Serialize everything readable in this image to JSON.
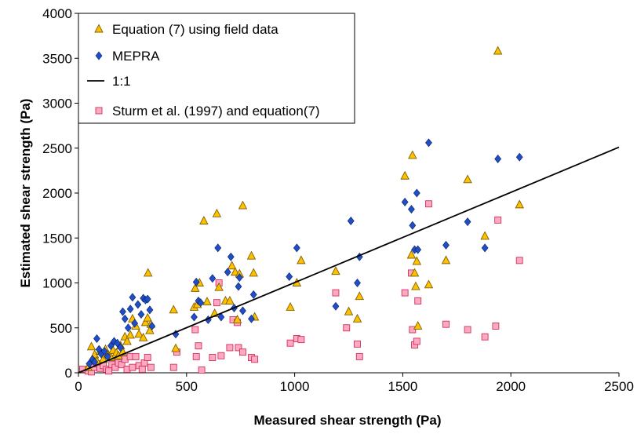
{
  "chart_data": {
    "type": "scatter",
    "title": "",
    "xlabel": "Measured shear strength (Pa)",
    "ylabel": "Estimated shear strength (Pa)",
    "xlim": [
      0,
      2500
    ],
    "ylim": [
      0,
      4000
    ],
    "xticks": [
      0,
      500,
      1000,
      1500,
      2000,
      2500
    ],
    "yticks": [
      0,
      500,
      1000,
      1500,
      2000,
      2500,
      3000,
      3500,
      4000
    ],
    "grid": false,
    "legend_position": "top-left",
    "series": [
      {
        "name": "Equation (7) using field data",
        "marker": "triangle",
        "color": "#FFC000",
        "stroke": "#7F6000",
        "points": [
          [
            45,
            60
          ],
          [
            60,
            290
          ],
          [
            75,
            200
          ],
          [
            85,
            130
          ],
          [
            100,
            240
          ],
          [
            115,
            150
          ],
          [
            125,
            260
          ],
          [
            135,
            200
          ],
          [
            150,
            170
          ],
          [
            160,
            250
          ],
          [
            175,
            220
          ],
          [
            185,
            190
          ],
          [
            195,
            300
          ],
          [
            205,
            230
          ],
          [
            215,
            400
          ],
          [
            225,
            350
          ],
          [
            240,
            420
          ],
          [
            250,
            600
          ],
          [
            265,
            520
          ],
          [
            280,
            430
          ],
          [
            300,
            390
          ],
          [
            310,
            560
          ],
          [
            320,
            610
          ],
          [
            322,
            1110
          ],
          [
            330,
            470
          ],
          [
            335,
            540
          ],
          [
            440,
            700
          ],
          [
            450,
            270
          ],
          [
            535,
            730
          ],
          [
            540,
            940
          ],
          [
            550,
            760
          ],
          [
            560,
            1000
          ],
          [
            580,
            1690
          ],
          [
            595,
            790
          ],
          [
            630,
            660
          ],
          [
            640,
            1770
          ],
          [
            650,
            950
          ],
          [
            680,
            800
          ],
          [
            700,
            800
          ],
          [
            710,
            1190
          ],
          [
            725,
            1120
          ],
          [
            735,
            590
          ],
          [
            745,
            1100
          ],
          [
            760,
            1860
          ],
          [
            800,
            1300
          ],
          [
            810,
            1110
          ],
          [
            815,
            620
          ],
          [
            980,
            730
          ],
          [
            1010,
            1000
          ],
          [
            1030,
            1250
          ],
          [
            1190,
            1130
          ],
          [
            1250,
            680
          ],
          [
            1290,
            600
          ],
          [
            1300,
            850
          ],
          [
            1510,
            2190
          ],
          [
            1540,
            1310
          ],
          [
            1545,
            2420
          ],
          [
            1555,
            1110
          ],
          [
            1560,
            960
          ],
          [
            1565,
            1240
          ],
          [
            1570,
            520
          ],
          [
            1620,
            980
          ],
          [
            1700,
            1250
          ],
          [
            1800,
            2150
          ],
          [
            1880,
            1520
          ],
          [
            1940,
            3580
          ],
          [
            2040,
            1870
          ]
        ]
      },
      {
        "name": "MEPRA",
        "marker": "diamond",
        "color": "#1F4FC8",
        "stroke": "#0A1F66",
        "points": [
          [
            50,
            100
          ],
          [
            65,
            150
          ],
          [
            75,
            120
          ],
          [
            85,
            380
          ],
          [
            95,
            260
          ],
          [
            105,
            210
          ],
          [
            120,
            240
          ],
          [
            135,
            180
          ],
          [
            150,
            300
          ],
          [
            165,
            350
          ],
          [
            180,
            330
          ],
          [
            195,
            280
          ],
          [
            205,
            680
          ],
          [
            215,
            600
          ],
          [
            230,
            500
          ],
          [
            240,
            710
          ],
          [
            250,
            840
          ],
          [
            260,
            550
          ],
          [
            275,
            760
          ],
          [
            290,
            650
          ],
          [
            300,
            830
          ],
          [
            310,
            810
          ],
          [
            320,
            820
          ],
          [
            330,
            700
          ],
          [
            340,
            520
          ],
          [
            450,
            430
          ],
          [
            535,
            620
          ],
          [
            545,
            1010
          ],
          [
            555,
            800
          ],
          [
            565,
            780
          ],
          [
            600,
            590
          ],
          [
            620,
            1050
          ],
          [
            645,
            1390
          ],
          [
            660,
            620
          ],
          [
            690,
            1120
          ],
          [
            705,
            1290
          ],
          [
            720,
            720
          ],
          [
            740,
            960
          ],
          [
            745,
            1060
          ],
          [
            760,
            690
          ],
          [
            800,
            600
          ],
          [
            810,
            870
          ],
          [
            975,
            1070
          ],
          [
            1010,
            1390
          ],
          [
            1190,
            740
          ],
          [
            1260,
            1690
          ],
          [
            1290,
            1000
          ],
          [
            1300,
            1290
          ],
          [
            1510,
            1900
          ],
          [
            1540,
            1820
          ],
          [
            1545,
            1640
          ],
          [
            1555,
            1370
          ],
          [
            1565,
            2000
          ],
          [
            1570,
            1370
          ],
          [
            1620,
            2560
          ],
          [
            1700,
            1420
          ],
          [
            1800,
            1680
          ],
          [
            1880,
            1390
          ],
          [
            1940,
            2380
          ],
          [
            2040,
            2400
          ]
        ]
      },
      {
        "name": "1:1",
        "marker": "line",
        "color": "#000000",
        "points": [
          [
            0,
            0
          ],
          [
            2500,
            2510
          ]
        ]
      },
      {
        "name": "Sturm et al. (1997) and equation(7)",
        "marker": "square",
        "color": "#FFAAC0",
        "stroke": "#D03060",
        "points": [
          [
            20,
            40
          ],
          [
            45,
            20
          ],
          [
            60,
            10
          ],
          [
            70,
            60
          ],
          [
            85,
            100
          ],
          [
            100,
            50
          ],
          [
            115,
            80
          ],
          [
            130,
            40
          ],
          [
            140,
            20
          ],
          [
            155,
            90
          ],
          [
            170,
            60
          ],
          [
            185,
            110
          ],
          [
            200,
            90
          ],
          [
            215,
            150
          ],
          [
            225,
            40
          ],
          [
            240,
            180
          ],
          [
            250,
            60
          ],
          [
            265,
            180
          ],
          [
            280,
            80
          ],
          [
            295,
            40
          ],
          [
            305,
            110
          ],
          [
            320,
            170
          ],
          [
            335,
            60
          ],
          [
            440,
            60
          ],
          [
            455,
            230
          ],
          [
            540,
            480
          ],
          [
            545,
            180
          ],
          [
            555,
            300
          ],
          [
            570,
            30
          ],
          [
            620,
            170
          ],
          [
            640,
            780
          ],
          [
            650,
            1000
          ],
          [
            660,
            190
          ],
          [
            700,
            280
          ],
          [
            715,
            590
          ],
          [
            735,
            560
          ],
          [
            740,
            280
          ],
          [
            760,
            230
          ],
          [
            800,
            170
          ],
          [
            815,
            150
          ],
          [
            980,
            330
          ],
          [
            1010,
            380
          ],
          [
            1030,
            370
          ],
          [
            1190,
            890
          ],
          [
            1240,
            500
          ],
          [
            1290,
            320
          ],
          [
            1300,
            180
          ],
          [
            1510,
            890
          ],
          [
            1540,
            1110
          ],
          [
            1545,
            480
          ],
          [
            1555,
            310
          ],
          [
            1565,
            350
          ],
          [
            1570,
            800
          ],
          [
            1620,
            1880
          ],
          [
            1700,
            540
          ],
          [
            1800,
            480
          ],
          [
            1880,
            400
          ],
          [
            1930,
            520
          ],
          [
            1940,
            1700
          ],
          [
            2040,
            1250
          ]
        ]
      }
    ]
  }
}
